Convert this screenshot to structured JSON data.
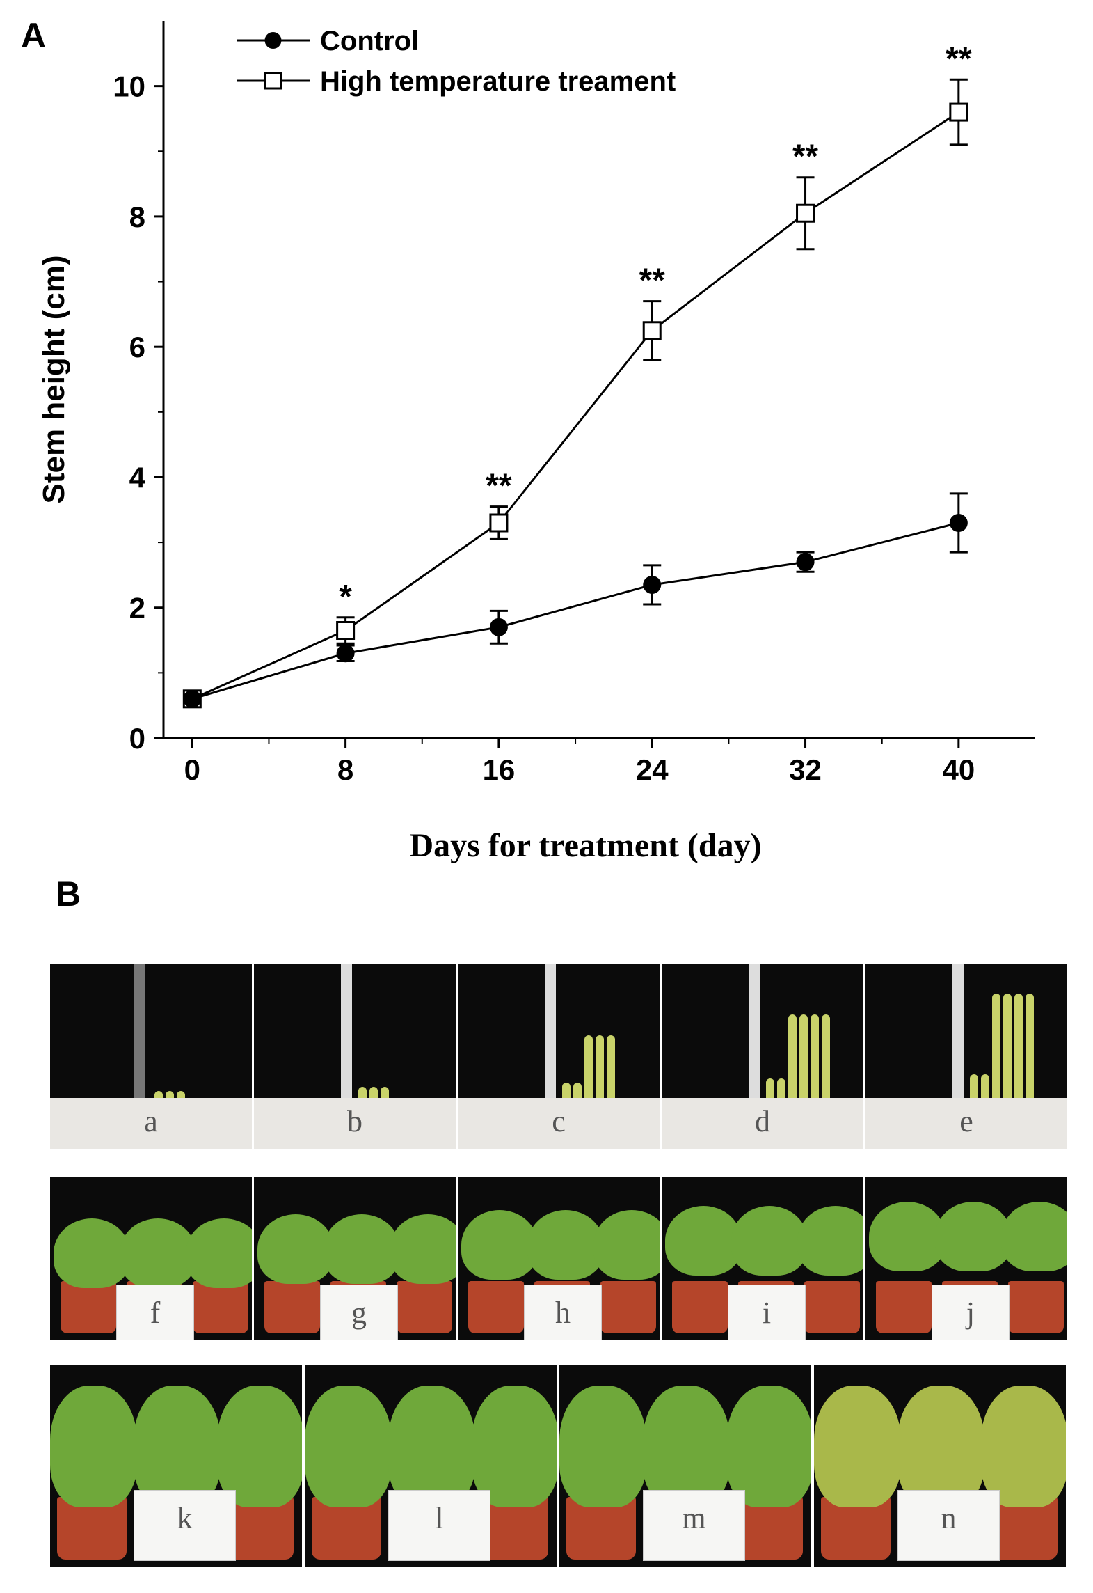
{
  "panels": {
    "a": "A",
    "b": "B"
  },
  "chart_data": {
    "type": "line",
    "title": "",
    "xlabel": "Days for treatment (day)",
    "ylabel": "Stem height (cm)",
    "x": [
      0,
      8,
      16,
      24,
      32,
      40
    ],
    "xticks": [
      "0",
      "8",
      "16",
      "24",
      "32",
      "40"
    ],
    "yticks": [
      "0",
      "2",
      "4",
      "6",
      "8",
      "10"
    ],
    "xlim": [
      -1.5,
      44
    ],
    "ylim": [
      0,
      11
    ],
    "grid": false,
    "legend_position": "top-left",
    "series": [
      {
        "name": "Control",
        "marker": "filled-circle",
        "color": "#000000",
        "values": [
          0.6,
          1.3,
          1.7,
          2.35,
          2.7,
          3.3
        ],
        "errors": [
          0.08,
          0.12,
          0.25,
          0.3,
          0.15,
          0.45
        ]
      },
      {
        "name": "High temperature treament",
        "marker": "open-square",
        "color": "#000000",
        "values": [
          0.6,
          1.65,
          3.3,
          6.25,
          8.05,
          9.6
        ],
        "errors": [
          0.08,
          0.2,
          0.25,
          0.45,
          0.55,
          0.5
        ]
      }
    ],
    "significance": [
      "",
      "*",
      "**",
      "**",
      "**",
      "**"
    ]
  },
  "photos": {
    "row1": [
      "a",
      "b",
      "c",
      "d",
      "e"
    ],
    "row2": [
      "f",
      "g",
      "h",
      "i",
      "j"
    ],
    "row3": [
      "k",
      "l",
      "m",
      "n"
    ]
  },
  "colors": {
    "line": "#000000",
    "photo_bg": "#0b0b0b",
    "leaf": "#6fa83a",
    "pot": "#b5452a"
  }
}
